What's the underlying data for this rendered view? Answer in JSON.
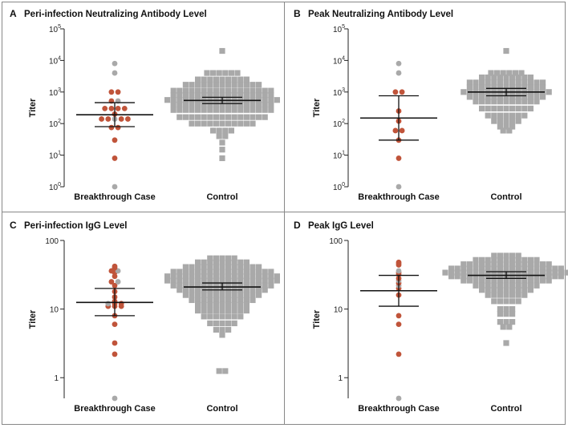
{
  "colors": {
    "case": "#c0543a",
    "case_grey": "#a9a9a9",
    "control": "#a9a9a9",
    "axis": "#222222",
    "bar": "#111111",
    "divider": "#888888"
  },
  "chart_data": [
    {
      "type": "scatter",
      "panel_letter": "A",
      "title": "Peri-infection Neutralizing Antibody Level",
      "ylabel": "Titer",
      "yscale": "log",
      "ylim": [
        1,
        100000
      ],
      "yticks": [
        {
          "value": 1,
          "base": "10",
          "exp": "0"
        },
        {
          "value": 10,
          "base": "10",
          "exp": "1"
        },
        {
          "value": 100,
          "base": "10",
          "exp": "2"
        },
        {
          "value": 1000,
          "base": "10",
          "exp": "3"
        },
        {
          "value": 10000,
          "base": "10",
          "exp": "4"
        },
        {
          "value": 100000,
          "base": "10",
          "exp": "5"
        }
      ],
      "categories": [
        "Breakthrough Case",
        "Control"
      ],
      "case_summary": {
        "center": 190,
        "low": 80,
        "high": 460
      },
      "case_points": [
        {
          "y": 8000,
          "highlight": false
        },
        {
          "y": 4000,
          "highlight": false
        },
        {
          "y": 1000,
          "highlight": true
        },
        {
          "y": 1000,
          "highlight": true
        },
        {
          "y": 520,
          "highlight": true
        },
        {
          "y": 520,
          "highlight": false
        },
        {
          "y": 300,
          "highlight": true
        },
        {
          "y": 300,
          "highlight": true
        },
        {
          "y": 300,
          "highlight": true
        },
        {
          "y": 300,
          "highlight": true
        },
        {
          "y": 200,
          "highlight": true
        },
        {
          "y": 140,
          "highlight": true
        },
        {
          "y": 140,
          "highlight": true
        },
        {
          "y": 140,
          "highlight": false
        },
        {
          "y": 140,
          "highlight": true
        },
        {
          "y": 140,
          "highlight": true
        },
        {
          "y": 75,
          "highlight": true
        },
        {
          "y": 75,
          "highlight": true
        },
        {
          "y": 30,
          "highlight": true
        },
        {
          "y": 8,
          "highlight": true
        },
        {
          "y": 1,
          "highlight": false
        }
      ],
      "control_summary": {
        "center": 540,
        "low": 430,
        "high": 680
      },
      "control_rows": [
        {
          "y": 20000,
          "n": 1
        },
        {
          "y": 4000,
          "n": 6
        },
        {
          "y": 2500,
          "n": 9
        },
        {
          "y": 1700,
          "n": 13
        },
        {
          "y": 1100,
          "n": 17
        },
        {
          "y": 800,
          "n": 17
        },
        {
          "y": 560,
          "n": 19
        },
        {
          "y": 400,
          "n": 17
        },
        {
          "y": 270,
          "n": 17
        },
        {
          "y": 160,
          "n": 15
        },
        {
          "y": 100,
          "n": 11
        },
        {
          "y": 60,
          "n": 4
        },
        {
          "y": 40,
          "n": 2
        },
        {
          "y": 25,
          "n": 1
        },
        {
          "y": 15,
          "n": 1
        },
        {
          "y": 8,
          "n": 1
        }
      ]
    },
    {
      "type": "scatter",
      "panel_letter": "B",
      "title": "Peak Neutralizing Antibody Level",
      "ylabel": "Titer",
      "yscale": "log",
      "ylim": [
        1,
        100000
      ],
      "yticks": [
        {
          "value": 1,
          "base": "10",
          "exp": "0"
        },
        {
          "value": 10,
          "base": "10",
          "exp": "1"
        },
        {
          "value": 100,
          "base": "10",
          "exp": "2"
        },
        {
          "value": 1000,
          "base": "10",
          "exp": "3"
        },
        {
          "value": 10000,
          "base": "10",
          "exp": "4"
        },
        {
          "value": 100000,
          "base": "10",
          "exp": "5"
        }
      ],
      "categories": [
        "Breakthrough Case",
        "Control"
      ],
      "case_summary": {
        "center": 150,
        "low": 30,
        "high": 760
      },
      "case_points": [
        {
          "y": 8000,
          "highlight": false
        },
        {
          "y": 4000,
          "highlight": false
        },
        {
          "y": 1000,
          "highlight": true
        },
        {
          "y": 1000,
          "highlight": true
        },
        {
          "y": 250,
          "highlight": true
        },
        {
          "y": 120,
          "highlight": true
        },
        {
          "y": 60,
          "highlight": true
        },
        {
          "y": 60,
          "highlight": true
        },
        {
          "y": 30,
          "highlight": true
        },
        {
          "y": 8,
          "highlight": true
        },
        {
          "y": 1,
          "highlight": false
        }
      ],
      "control_summary": {
        "center": 1000,
        "low": 760,
        "high": 1300
      },
      "control_rows": [
        {
          "y": 20000,
          "n": 1
        },
        {
          "y": 4000,
          "n": 6
        },
        {
          "y": 2900,
          "n": 9
        },
        {
          "y": 2000,
          "n": 13
        },
        {
          "y": 1400,
          "n": 13
        },
        {
          "y": 1000,
          "n": 15
        },
        {
          "y": 700,
          "n": 13
        },
        {
          "y": 500,
          "n": 11
        },
        {
          "y": 300,
          "n": 9
        },
        {
          "y": 180,
          "n": 7
        },
        {
          "y": 120,
          "n": 5
        },
        {
          "y": 80,
          "n": 3
        },
        {
          "y": 60,
          "n": 2
        }
      ]
    },
    {
      "type": "scatter",
      "panel_letter": "C",
      "title": "Peri-infection IgG Level",
      "ylabel": "Titer",
      "yscale": "log",
      "ylim": [
        0.5,
        100
      ],
      "yticks": [
        {
          "value": 1,
          "base": "1",
          "exp": ""
        },
        {
          "value": 10,
          "base": "10",
          "exp": ""
        },
        {
          "value": 100,
          "base": "100",
          "exp": ""
        }
      ],
      "categories": [
        "Breakthrough Case",
        "Control"
      ],
      "case_summary": {
        "center": 12.5,
        "low": 8,
        "high": 20
      },
      "case_points": [
        {
          "y": 42,
          "highlight": true
        },
        {
          "y": 40,
          "highlight": true
        },
        {
          "y": 36,
          "highlight": true
        },
        {
          "y": 36,
          "highlight": false
        },
        {
          "y": 34,
          "highlight": true
        },
        {
          "y": 30,
          "highlight": true
        },
        {
          "y": 25,
          "highlight": true
        },
        {
          "y": 25,
          "highlight": false
        },
        {
          "y": 22,
          "highlight": true
        },
        {
          "y": 18,
          "highlight": true
        },
        {
          "y": 15,
          "highlight": true
        },
        {
          "y": 13,
          "highlight": true
        },
        {
          "y": 12,
          "highlight": false
        },
        {
          "y": 12,
          "highlight": true
        },
        {
          "y": 12,
          "highlight": true
        },
        {
          "y": 11,
          "highlight": true
        },
        {
          "y": 11,
          "highlight": true
        },
        {
          "y": 11,
          "highlight": true
        },
        {
          "y": 8,
          "highlight": true
        },
        {
          "y": 6,
          "highlight": true
        },
        {
          "y": 3.2,
          "highlight": true
        },
        {
          "y": 2.2,
          "highlight": true
        },
        {
          "y": 0.5,
          "highlight": false
        }
      ],
      "control_summary": {
        "center": 21,
        "low": 19,
        "high": 24
      },
      "control_rows": [
        {
          "y": 55,
          "n": 5
        },
        {
          "y": 48,
          "n": 9
        },
        {
          "y": 41,
          "n": 13
        },
        {
          "y": 35,
          "n": 17
        },
        {
          "y": 30,
          "n": 19
        },
        {
          "y": 26,
          "n": 19
        },
        {
          "y": 22,
          "n": 17
        },
        {
          "y": 19,
          "n": 15
        },
        {
          "y": 16,
          "n": 13
        },
        {
          "y": 13.5,
          "n": 11
        },
        {
          "y": 11.5,
          "n": 9
        },
        {
          "y": 9.5,
          "n": 9
        },
        {
          "y": 7.8,
          "n": 7
        },
        {
          "y": 6.2,
          "n": 5
        },
        {
          "y": 5,
          "n": 3
        },
        {
          "y": 4.2,
          "n": 1
        },
        {
          "y": 1.25,
          "n": 2
        }
      ]
    },
    {
      "type": "scatter",
      "panel_letter": "D",
      "title": "Peak IgG Level",
      "ylabel": "Titer",
      "yscale": "log",
      "ylim": [
        0.5,
        100
      ],
      "yticks": [
        {
          "value": 1,
          "base": "1",
          "exp": ""
        },
        {
          "value": 10,
          "base": "10",
          "exp": ""
        },
        {
          "value": 100,
          "base": "100",
          "exp": ""
        }
      ],
      "categories": [
        "Breakthrough Case",
        "Control"
      ],
      "case_summary": {
        "center": 18.5,
        "low": 11,
        "high": 31
      },
      "case_points": [
        {
          "y": 48,
          "highlight": true
        },
        {
          "y": 46,
          "highlight": true
        },
        {
          "y": 44,
          "highlight": true
        },
        {
          "y": 36,
          "highlight": false
        },
        {
          "y": 34,
          "highlight": true
        },
        {
          "y": 32,
          "highlight": true
        },
        {
          "y": 28,
          "highlight": true
        },
        {
          "y": 26,
          "highlight": false
        },
        {
          "y": 24,
          "highlight": true
        },
        {
          "y": 22,
          "highlight": false
        },
        {
          "y": 20,
          "highlight": true
        },
        {
          "y": 16,
          "highlight": true
        },
        {
          "y": 8,
          "highlight": true
        },
        {
          "y": 6,
          "highlight": true
        },
        {
          "y": 2.2,
          "highlight": true
        },
        {
          "y": 0.5,
          "highlight": false
        }
      ],
      "control_summary": {
        "center": 31,
        "low": 28,
        "high": 35
      },
      "control_rows": [
        {
          "y": 60,
          "n": 5
        },
        {
          "y": 52,
          "n": 11
        },
        {
          "y": 45,
          "n": 15
        },
        {
          "y": 39,
          "n": 19
        },
        {
          "y": 34,
          "n": 21
        },
        {
          "y": 30,
          "n": 19
        },
        {
          "y": 26,
          "n": 15
        },
        {
          "y": 22,
          "n": 11
        },
        {
          "y": 19,
          "n": 9
        },
        {
          "y": 16,
          "n": 7
        },
        {
          "y": 13,
          "n": 5
        },
        {
          "y": 10,
          "n": 3
        },
        {
          "y": 8.5,
          "n": 3
        },
        {
          "y": 6.5,
          "n": 3
        },
        {
          "y": 5.5,
          "n": 2
        },
        {
          "y": 3.2,
          "n": 1
        }
      ]
    }
  ]
}
